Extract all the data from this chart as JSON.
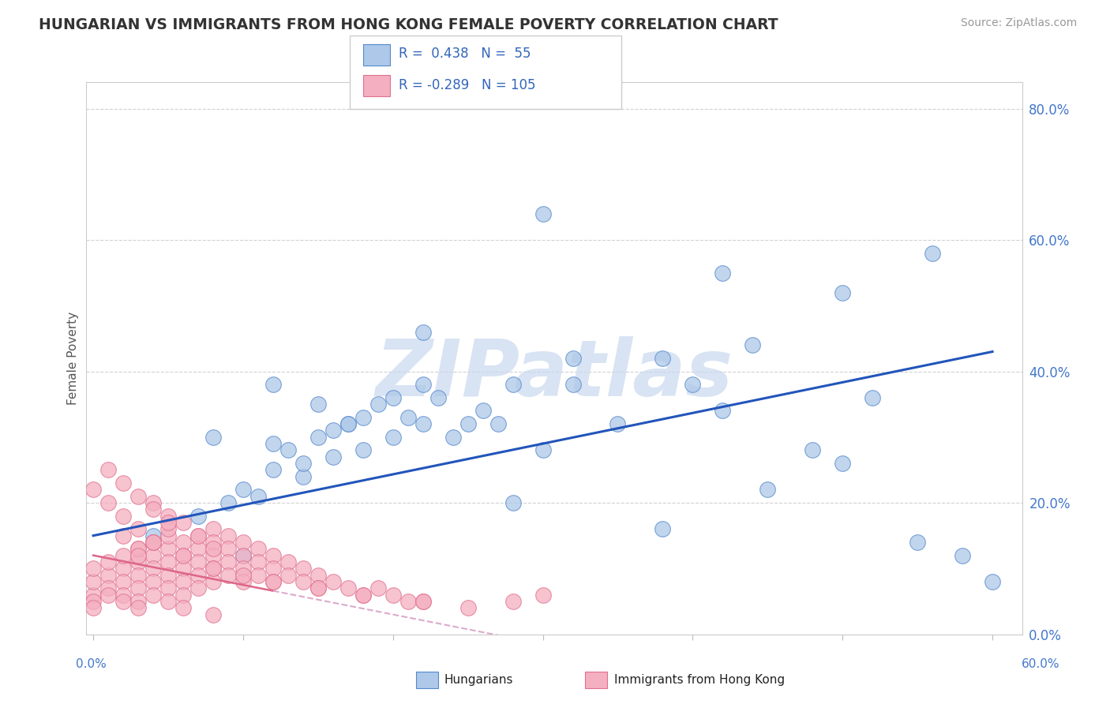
{
  "title": "HUNGARIAN VS IMMIGRANTS FROM HONG KONG FEMALE POVERTY CORRELATION CHART",
  "source": "Source: ZipAtlas.com",
  "ylabel": "Female Poverty",
  "ylim": [
    0.0,
    0.84
  ],
  "xlim": [
    -0.005,
    0.62
  ],
  "yticks": [
    0.0,
    0.2,
    0.4,
    0.6,
    0.8
  ],
  "ytick_labels": [
    "0.0%",
    "20.0%",
    "40.0%",
    "60.0%",
    "80.0%"
  ],
  "xtick_labels": [
    "0.0%",
    "60.0%"
  ],
  "blue_R": 0.438,
  "blue_N": 55,
  "pink_R": -0.289,
  "pink_N": 105,
  "blue_color": "#adc8e8",
  "pink_color": "#f4afc0",
  "blue_edge_color": "#5588cc",
  "pink_edge_color": "#e07090",
  "blue_line_color": "#2255bb",
  "pink_solid_color": "#dd6688",
  "pink_dash_color": "#ddaacc",
  "watermark": "ZIPatlas",
  "blue_scatter_x": [
    0.04,
    0.07,
    0.09,
    0.1,
    0.11,
    0.12,
    0.13,
    0.14,
    0.15,
    0.16,
    0.17,
    0.18,
    0.19,
    0.2,
    0.21,
    0.22,
    0.23,
    0.24,
    0.26,
    0.28,
    0.1,
    0.12,
    0.14,
    0.15,
    0.16,
    0.18,
    0.2,
    0.22,
    0.25,
    0.28,
    0.3,
    0.32,
    0.35,
    0.38,
    0.4,
    0.42,
    0.45,
    0.48,
    0.5,
    0.52,
    0.55,
    0.58,
    0.6,
    0.08,
    0.12,
    0.17,
    0.22,
    0.27,
    0.32,
    0.38,
    0.44,
    0.5,
    0.56,
    0.3,
    0.42
  ],
  "blue_scatter_y": [
    0.15,
    0.18,
    0.2,
    0.22,
    0.21,
    0.25,
    0.28,
    0.24,
    0.3,
    0.27,
    0.32,
    0.28,
    0.35,
    0.3,
    0.33,
    0.32,
    0.36,
    0.3,
    0.34,
    0.38,
    0.12,
    0.29,
    0.26,
    0.35,
    0.31,
    0.33,
    0.36,
    0.38,
    0.32,
    0.2,
    0.28,
    0.38,
    0.32,
    0.16,
    0.38,
    0.34,
    0.22,
    0.28,
    0.26,
    0.36,
    0.14,
    0.12,
    0.08,
    0.3,
    0.38,
    0.32,
    0.46,
    0.32,
    0.42,
    0.42,
    0.44,
    0.52,
    0.58,
    0.64,
    0.55
  ],
  "pink_scatter_x": [
    0.0,
    0.0,
    0.0,
    0.0,
    0.0,
    0.01,
    0.01,
    0.01,
    0.01,
    0.02,
    0.02,
    0.02,
    0.02,
    0.02,
    0.03,
    0.03,
    0.03,
    0.03,
    0.03,
    0.03,
    0.04,
    0.04,
    0.04,
    0.04,
    0.04,
    0.05,
    0.05,
    0.05,
    0.05,
    0.05,
    0.05,
    0.06,
    0.06,
    0.06,
    0.06,
    0.06,
    0.07,
    0.07,
    0.07,
    0.07,
    0.07,
    0.08,
    0.08,
    0.08,
    0.08,
    0.08,
    0.09,
    0.09,
    0.09,
    0.09,
    0.1,
    0.1,
    0.1,
    0.1,
    0.11,
    0.11,
    0.11,
    0.12,
    0.12,
    0.12,
    0.13,
    0.13,
    0.14,
    0.14,
    0.15,
    0.15,
    0.16,
    0.17,
    0.18,
    0.19,
    0.2,
    0.21,
    0.22,
    0.0,
    0.01,
    0.02,
    0.03,
    0.04,
    0.05,
    0.02,
    0.03,
    0.04,
    0.05,
    0.06,
    0.07,
    0.08,
    0.01,
    0.02,
    0.03,
    0.04,
    0.05,
    0.03,
    0.04,
    0.06,
    0.08,
    0.1,
    0.12,
    0.15,
    0.18,
    0.22,
    0.25,
    0.28,
    0.3,
    0.06,
    0.08
  ],
  "pink_scatter_y": [
    0.06,
    0.08,
    0.1,
    0.05,
    0.04,
    0.09,
    0.07,
    0.11,
    0.06,
    0.1,
    0.08,
    0.06,
    0.12,
    0.05,
    0.11,
    0.09,
    0.07,
    0.13,
    0.05,
    0.04,
    0.12,
    0.1,
    0.08,
    0.06,
    0.14,
    0.13,
    0.11,
    0.09,
    0.07,
    0.05,
    0.15,
    0.14,
    0.12,
    0.1,
    0.08,
    0.06,
    0.15,
    0.13,
    0.11,
    0.09,
    0.07,
    0.16,
    0.14,
    0.12,
    0.1,
    0.08,
    0.15,
    0.13,
    0.11,
    0.09,
    0.14,
    0.12,
    0.1,
    0.08,
    0.13,
    0.11,
    0.09,
    0.12,
    0.1,
    0.08,
    0.11,
    0.09,
    0.1,
    0.08,
    0.09,
    0.07,
    0.08,
    0.07,
    0.06,
    0.07,
    0.06,
    0.05,
    0.05,
    0.22,
    0.2,
    0.18,
    0.16,
    0.2,
    0.18,
    0.15,
    0.13,
    0.14,
    0.16,
    0.17,
    0.15,
    0.13,
    0.25,
    0.23,
    0.21,
    0.19,
    0.17,
    0.12,
    0.14,
    0.12,
    0.1,
    0.09,
    0.08,
    0.07,
    0.06,
    0.05,
    0.04,
    0.05,
    0.06,
    0.04,
    0.03
  ]
}
